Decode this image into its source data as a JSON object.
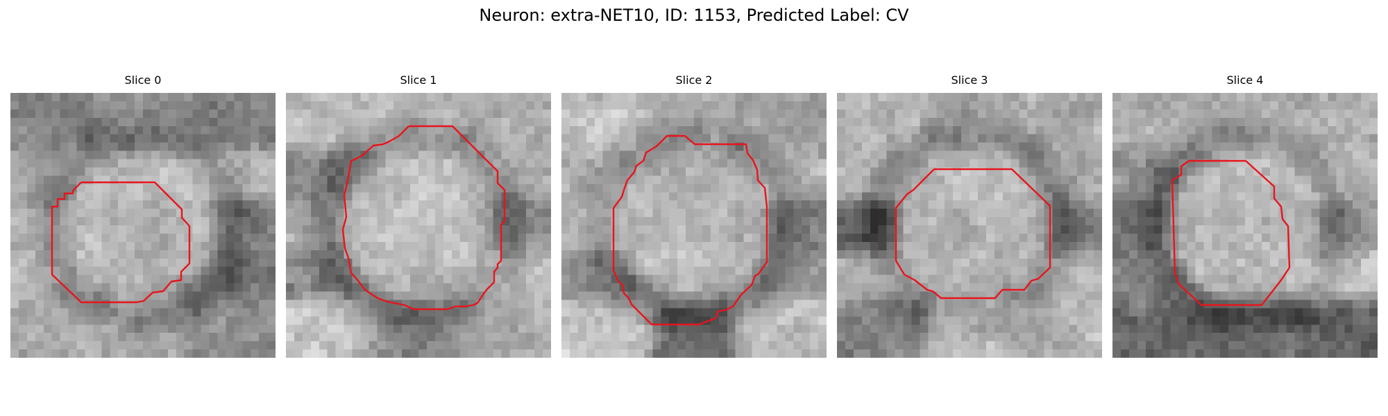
{
  "figure": {
    "title": "Neuron: extra-NET10, ID: 1153, Predicted Label: CV",
    "contour_color": "#e8141c"
  },
  "panels": [
    {
      "title": "Slice 0",
      "seed": 11,
      "darkness": [
        [
          0.55,
          0.42,
          0.55
        ],
        [
          0.3,
          0.55,
          0.1
        ],
        [
          0.22,
          0.9,
          0.6
        ],
        [
          0.18,
          0.75,
          0.65
        ],
        [
          0.2,
          0.25,
          0.48
        ]
      ]
    },
    {
      "title": "Slice 1",
      "seed": 23,
      "darkness": [
        [
          0.12,
          0.08,
          0.2
        ],
        [
          0.5,
          0.1,
          0.18
        ],
        [
          0.3,
          0.3,
          0.5
        ],
        [
          0.55,
          0.5,
          0.05
        ],
        [
          0.05,
          0.52,
          0.25
        ]
      ]
    },
    {
      "title": "Slice 2",
      "seed": 37,
      "darkness": [
        [
          0.05,
          0.2,
          0.3
        ],
        [
          0.18,
          0.8,
          0.2
        ],
        [
          0.12,
          0.5,
          0.55
        ],
        [
          0.55,
          0.6,
          0.4
        ],
        [
          0.05,
          0.7,
          0.1
        ]
      ]
    },
    {
      "title": "Slice 3",
      "seed": 51,
      "darkness": [
        [
          0.12,
          0.3,
          0.25
        ],
        [
          0.2,
          0.1,
          0.25
        ],
        [
          0.85,
          0.6,
          0.6
        ],
        [
          0.2,
          0.9,
          0.2
        ],
        [
          0.6,
          0.08,
          0.15
        ]
      ]
    },
    {
      "title": "Slice 4",
      "seed": 67,
      "darkness": [
        [
          0.2,
          0.15,
          0.2
        ],
        [
          0.45,
          0.25,
          0.1
        ],
        [
          0.72,
          0.45,
          0.45
        ],
        [
          0.55,
          0.55,
          0.05
        ],
        [
          0.78,
          0.7,
          0.82
        ]
      ]
    }
  ]
}
